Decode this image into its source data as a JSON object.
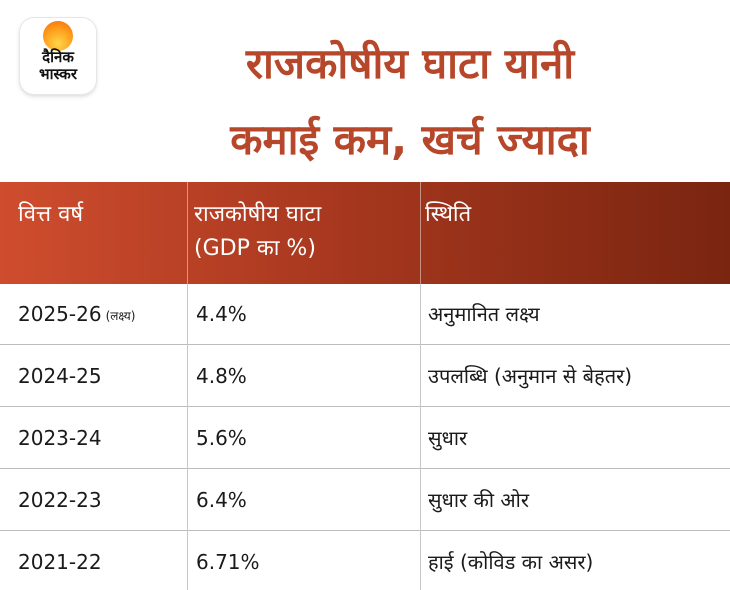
{
  "brand": {
    "line1": "दैनिक",
    "line2": "भास्कर",
    "accent": "#f28a1a"
  },
  "title": {
    "line1": "राजकोषीय घाटा यानी",
    "line2": "कमाई कम, खर्च ज्यादा",
    "color": "#b7472a"
  },
  "table": {
    "header_colors": [
      "#cf4d2e",
      "#7a2510"
    ],
    "columns": {
      "year": "वित्त वर्ष",
      "deficit_line1": "राजकोषीय घाटा",
      "deficit_line2": "(GDP का %)",
      "status": "स्थिति"
    },
    "rows": [
      {
        "year": "2025-26",
        "note": "(लक्ष्य)",
        "deficit": "4.4%",
        "status": "अनुमानित लक्ष्य"
      },
      {
        "year": "2024-25",
        "deficit": "4.8%",
        "status": "उपलब्धि (अनुमान से बेहतर)"
      },
      {
        "year": "2023-24",
        "deficit": "5.6%",
        "status": "सुधार"
      },
      {
        "year": "2022-23",
        "deficit": "6.4%",
        "status": "सुधार की ओर"
      },
      {
        "year": "2021-22",
        "deficit": "6.71%",
        "status": "हाई (कोविड का असर)"
      }
    ]
  }
}
